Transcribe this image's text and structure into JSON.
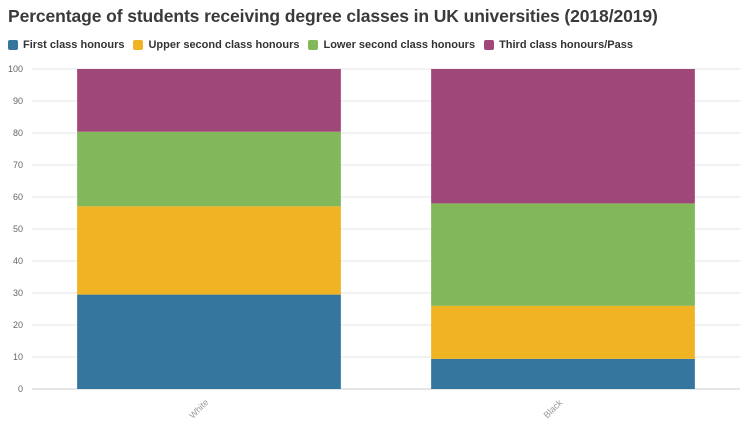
{
  "title": "Percentage of students receiving degree classes in UK universities (2018/2019)",
  "chart_data": {
    "type": "bar",
    "stacked": true,
    "title": "Percentage of students receiving degree classes in UK universities (2018/2019)",
    "categories": [
      "White",
      "Black"
    ],
    "series": [
      {
        "name": "First class honours",
        "color": "#35769f",
        "values": [
          29.5,
          9.4
        ]
      },
      {
        "name": "Upper second class honours",
        "color": "#efb324",
        "values": [
          27.6,
          16.6
        ]
      },
      {
        "name": "Lower second class honours",
        "color": "#82b75a",
        "values": [
          23.3,
          32.0
        ]
      },
      {
        "name": "Third class honours/Pass",
        "color": "#a0477a",
        "values": [
          19.6,
          42.0
        ]
      }
    ],
    "ylim": [
      0,
      100
    ],
    "yticks": [
      0,
      10,
      20,
      30,
      40,
      50,
      60,
      70,
      80,
      90,
      100
    ],
    "grid": true,
    "legend_position": "top-left",
    "xlabel": "",
    "ylabel": ""
  }
}
